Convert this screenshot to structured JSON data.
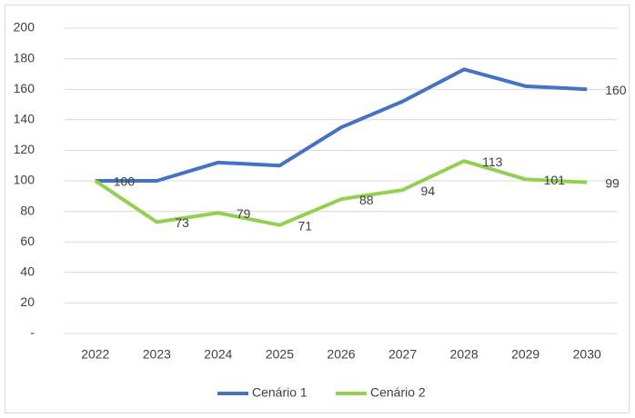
{
  "chart_data": {
    "type": "line",
    "categories": [
      "2022",
      "2023",
      "2024",
      "2025",
      "2026",
      "2027",
      "2028",
      "2029",
      "2030"
    ],
    "series": [
      {
        "name": "Cenário 1",
        "color": "#4472c4",
        "values": [
          100,
          100,
          112,
          110,
          135,
          152,
          173,
          162,
          160
        ],
        "value_labels": [
          null,
          null,
          null,
          null,
          null,
          null,
          null,
          null,
          "160"
        ]
      },
      {
        "name": "Cenário 2",
        "color": "#92d050",
        "values": [
          100,
          73,
          79,
          71,
          88,
          94,
          113,
          101,
          99
        ],
        "value_labels": [
          "100",
          "73",
          "79",
          "71",
          "88",
          "94",
          "113",
          "101",
          "99"
        ]
      }
    ],
    "ylim": [
      0,
      200
    ],
    "yticks": [
      {
        "value": 0,
        "label": "-"
      },
      20,
      40,
      60,
      80,
      100,
      120,
      140,
      160,
      180,
      200
    ],
    "grid": true,
    "legend": "bottom"
  }
}
